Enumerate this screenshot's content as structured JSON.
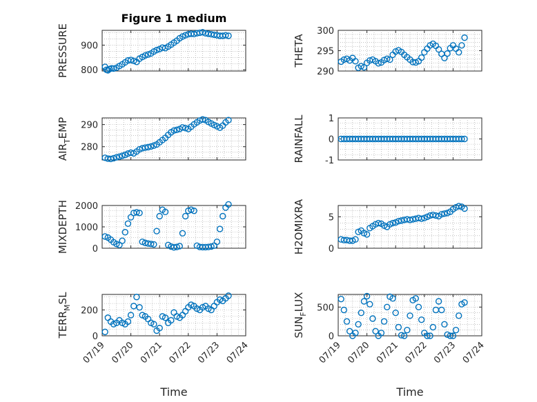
{
  "title": "Figure 1 medium",
  "xlabel": "Time",
  "x_ticks": [
    "07/19",
    "07/20",
    "07/21",
    "07/22",
    "07/23",
    "07/24"
  ],
  "chart_data": [
    {
      "type": "scatter",
      "ylabel": "PRESSURE",
      "xlim": [
        0,
        5
      ],
      "ylim": [
        795,
        960
      ],
      "yticks": [
        800,
        900
      ],
      "yminor_step": 25,
      "x": [
        0.1,
        0.15,
        0.2,
        0.26,
        0.33,
        0.4,
        0.5,
        0.6,
        0.7,
        0.8,
        0.9,
        1.0,
        1.1,
        1.2,
        1.3,
        1.4,
        1.5,
        1.6,
        1.7,
        1.8,
        1.9,
        2.0,
        2.1,
        2.2,
        2.3,
        2.4,
        2.5,
        2.6,
        2.7,
        2.8,
        2.9,
        3.0,
        3.1,
        3.2,
        3.3,
        3.4,
        3.5,
        3.6,
        3.7,
        3.8,
        3.9,
        4.0,
        4.1,
        4.2,
        4.3,
        4.4
      ],
      "y": [
        812,
        800,
        798,
        803,
        806,
        805,
        808,
        815,
        822,
        830,
        838,
        840,
        836,
        832,
        845,
        852,
        858,
        862,
        866,
        874,
        880,
        884,
        890,
        888,
        894,
        902,
        910,
        918,
        928,
        935,
        940,
        944,
        946,
        945,
        948,
        950,
        952,
        948,
        946,
        944,
        942,
        940,
        938,
        938,
        940,
        938
      ]
    },
    {
      "type": "scatter",
      "ylabel": "THETA",
      "xlim": [
        0,
        5
      ],
      "ylim": [
        290,
        300
      ],
      "yticks": [
        290,
        295,
        300
      ],
      "yminor_step": 1,
      "x": [
        0.1,
        0.2,
        0.3,
        0.4,
        0.5,
        0.6,
        0.7,
        0.8,
        0.9,
        1.0,
        1.1,
        1.2,
        1.3,
        1.4,
        1.5,
        1.6,
        1.7,
        1.8,
        1.9,
        2.0,
        2.1,
        2.2,
        2.3,
        2.4,
        2.5,
        2.6,
        2.7,
        2.8,
        2.9,
        3.0,
        3.1,
        3.2,
        3.3,
        3.4,
        3.5,
        3.6,
        3.7,
        3.8,
        3.9,
        4.0,
        4.1,
        4.2,
        4.3,
        4.4
      ],
      "y": [
        292.3,
        292.8,
        293.0,
        292.6,
        293.2,
        292.4,
        290.8,
        291.2,
        290.9,
        292.0,
        292.6,
        292.8,
        292.4,
        291.9,
        292.1,
        292.7,
        293.0,
        292.8,
        294.0,
        294.8,
        295.1,
        294.7,
        294.0,
        293.4,
        292.8,
        292.2,
        292.1,
        292.4,
        293.3,
        294.6,
        295.5,
        296.3,
        296.7,
        296.2,
        295.3,
        294.2,
        293.2,
        294.3,
        295.6,
        296.3,
        295.5,
        294.6,
        296.3,
        298.2
      ]
    },
    {
      "type": "scatter",
      "ylabel": "AIR_TEMP",
      "xlim": [
        0,
        5
      ],
      "ylim": [
        274,
        293
      ],
      "yticks": [
        280,
        290
      ],
      "yminor_step": 2.5,
      "x": [
        0.1,
        0.2,
        0.3,
        0.4,
        0.5,
        0.6,
        0.7,
        0.8,
        0.9,
        1.0,
        1.1,
        1.2,
        1.3,
        1.4,
        1.5,
        1.6,
        1.7,
        1.8,
        1.9,
        2.0,
        2.1,
        2.2,
        2.3,
        2.4,
        2.5,
        2.6,
        2.7,
        2.8,
        2.9,
        3.0,
        3.1,
        3.2,
        3.3,
        3.4,
        3.5,
        3.6,
        3.7,
        3.8,
        3.9,
        4.0,
        4.1,
        4.2,
        4.3,
        4.4
      ],
      "y": [
        275.0,
        274.6,
        274.5,
        274.8,
        275.2,
        275.5,
        275.9,
        276.3,
        276.9,
        277.3,
        277.0,
        277.8,
        278.8,
        279.3,
        279.6,
        279.8,
        280.1,
        280.5,
        281.0,
        282.0,
        283.0,
        284.0,
        285.3,
        286.5,
        287.3,
        287.6,
        288.0,
        288.7,
        288.4,
        288.0,
        289.0,
        290.1,
        291.0,
        291.8,
        292.3,
        292.0,
        291.2,
        290.5,
        289.8,
        289.2,
        288.6,
        289.5,
        291.0,
        292.0
      ]
    },
    {
      "type": "scatter",
      "ylabel": "RAINFALL",
      "xlim": [
        0,
        5
      ],
      "ylim": [
        -1,
        1
      ],
      "yticks": [
        -1,
        0,
        1
      ],
      "yminor_step": 0.25,
      "x": [
        0.1,
        0.2,
        0.3,
        0.4,
        0.5,
        0.6,
        0.7,
        0.8,
        0.9,
        1.0,
        1.1,
        1.2,
        1.3,
        1.4,
        1.5,
        1.6,
        1.7,
        1.8,
        1.9,
        2.0,
        2.1,
        2.2,
        2.3,
        2.4,
        2.5,
        2.6,
        2.7,
        2.8,
        2.9,
        3.0,
        3.1,
        3.2,
        3.3,
        3.4,
        3.5,
        3.6,
        3.7,
        3.8,
        3.9,
        4.0,
        4.1,
        4.2,
        4.3,
        4.4
      ],
      "y": [
        0,
        0,
        0,
        0,
        0,
        0,
        0,
        0,
        0,
        0,
        0,
        0,
        0,
        0,
        0,
        0,
        0,
        0,
        0,
        0,
        0,
        0,
        0,
        0,
        0,
        0,
        0,
        0,
        0,
        0,
        0,
        0,
        0,
        0,
        0,
        0,
        0,
        0,
        0,
        0,
        0,
        0,
        0,
        0
      ]
    },
    {
      "type": "scatter",
      "ylabel": "MIXDEPTH",
      "xlim": [
        0,
        5
      ],
      "ylim": [
        0,
        2000
      ],
      "yticks": [
        0,
        1000,
        2000
      ],
      "yminor_step": 250,
      "x": [
        0.1,
        0.2,
        0.3,
        0.4,
        0.5,
        0.6,
        0.7,
        0.8,
        0.9,
        1.0,
        1.1,
        1.2,
        1.3,
        1.4,
        1.5,
        1.6,
        1.7,
        1.8,
        1.9,
        2.0,
        2.1,
        2.2,
        2.3,
        2.4,
        2.5,
        2.6,
        2.7,
        2.8,
        2.9,
        3.0,
        3.1,
        3.2,
        3.3,
        3.4,
        3.5,
        3.6,
        3.7,
        3.8,
        3.9,
        4.0,
        4.1,
        4.2,
        4.3,
        4.4
      ],
      "y": [
        550,
        500,
        400,
        280,
        200,
        150,
        350,
        750,
        1150,
        1450,
        1650,
        1680,
        1650,
        300,
        250,
        220,
        200,
        180,
        800,
        1500,
        1800,
        1700,
        150,
        80,
        40,
        60,
        100,
        700,
        1500,
        1750,
        1800,
        1750,
        120,
        60,
        50,
        50,
        60,
        80,
        120,
        300,
        900,
        1500,
        1900,
        2050
      ]
    },
    {
      "type": "scatter",
      "ylabel": "H2OMIXRA",
      "xlim": [
        0,
        5
      ],
      "ylim": [
        0,
        6.8
      ],
      "yticks": [
        0,
        5
      ],
      "yminor_step": 1,
      "x": [
        0.1,
        0.2,
        0.3,
        0.4,
        0.5,
        0.6,
        0.7,
        0.8,
        0.9,
        1.0,
        1.1,
        1.2,
        1.3,
        1.4,
        1.5,
        1.6,
        1.7,
        1.8,
        1.9,
        2.0,
        2.1,
        2.2,
        2.3,
        2.4,
        2.5,
        2.6,
        2.7,
        2.8,
        2.9,
        3.0,
        3.1,
        3.2,
        3.3,
        3.4,
        3.5,
        3.6,
        3.7,
        3.8,
        3.9,
        4.0,
        4.1,
        4.2,
        4.3,
        4.4
      ],
      "y": [
        1.4,
        1.3,
        1.3,
        1.2,
        1.2,
        1.4,
        2.6,
        2.8,
        2.4,
        2.2,
        3.2,
        3.5,
        3.8,
        4.0,
        3.9,
        3.6,
        3.4,
        3.8,
        4.0,
        4.1,
        4.3,
        4.4,
        4.5,
        4.6,
        4.5,
        4.6,
        4.7,
        4.8,
        4.7,
        4.8,
        5.0,
        5.2,
        5.3,
        5.2,
        5.1,
        5.4,
        5.5,
        5.6,
        5.8,
        6.2,
        6.5,
        6.7,
        6.6,
        6.3
      ]
    },
    {
      "type": "scatter",
      "ylabel": "TERR_MSL",
      "xlim": [
        0,
        5
      ],
      "ylim": [
        0,
        320
      ],
      "yticks": [
        0,
        200
      ],
      "yminor_step": 50,
      "x": [
        0.1,
        0.2,
        0.3,
        0.4,
        0.5,
        0.6,
        0.7,
        0.8,
        0.9,
        1.0,
        1.1,
        1.2,
        1.3,
        1.4,
        1.5,
        1.6,
        1.7,
        1.8,
        1.9,
        2.0,
        2.1,
        2.2,
        2.3,
        2.4,
        2.5,
        2.6,
        2.7,
        2.8,
        2.9,
        3.0,
        3.1,
        3.2,
        3.3,
        3.4,
        3.5,
        3.6,
        3.7,
        3.8,
        3.9,
        4.0,
        4.1,
        4.2,
        4.3,
        4.4
      ],
      "y": [
        30,
        140,
        110,
        90,
        100,
        120,
        100,
        90,
        110,
        160,
        230,
        300,
        220,
        160,
        150,
        130,
        100,
        90,
        40,
        60,
        150,
        140,
        100,
        120,
        180,
        150,
        140,
        160,
        190,
        220,
        240,
        230,
        210,
        200,
        220,
        230,
        210,
        200,
        230,
        260,
        280,
        270,
        290,
        310
      ]
    },
    {
      "type": "scatter",
      "ylabel": "SUN_FLUX",
      "xlim": [
        0,
        5
      ],
      "ylim": [
        0,
        720
      ],
      "yticks": [
        0,
        500
      ],
      "yminor_step": 100,
      "x": [
        0.1,
        0.2,
        0.3,
        0.4,
        0.5,
        0.6,
        0.7,
        0.8,
        0.9,
        1.0,
        1.1,
        1.2,
        1.3,
        1.4,
        1.5,
        1.6,
        1.7,
        1.8,
        1.9,
        2.0,
        2.1,
        2.2,
        2.3,
        2.4,
        2.5,
        2.6,
        2.7,
        2.8,
        2.9,
        3.0,
        3.1,
        3.2,
        3.3,
        3.4,
        3.5,
        3.6,
        3.7,
        3.8,
        3.9,
        4.0,
        4.1,
        4.2,
        4.3,
        4.4
      ],
      "y": [
        640,
        450,
        250,
        80,
        0,
        50,
        200,
        400,
        600,
        690,
        550,
        300,
        80,
        0,
        50,
        250,
        500,
        680,
        650,
        400,
        150,
        10,
        0,
        100,
        350,
        620,
        650,
        500,
        280,
        50,
        0,
        0,
        150,
        450,
        600,
        450,
        200,
        20,
        0,
        0,
        100,
        350,
        550,
        580
      ]
    }
  ]
}
